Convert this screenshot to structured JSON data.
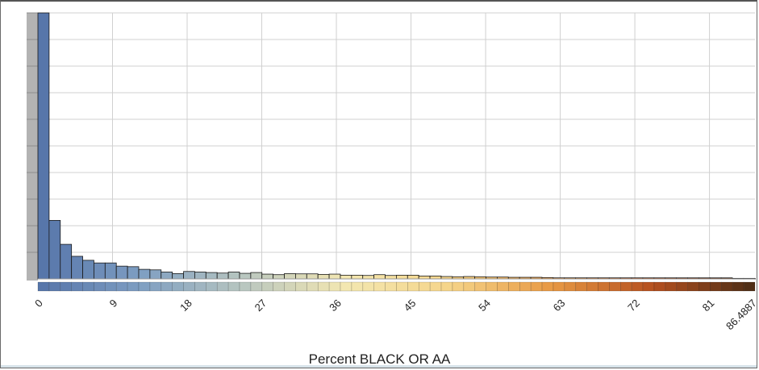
{
  "chart_data": {
    "type": "bar",
    "xlabel": "Percent BLACK OR AA",
    "x_ticks": [
      "0",
      "9",
      "18",
      "27",
      "36",
      "45",
      "54",
      "63",
      "72",
      "81",
      "86.4887"
    ],
    "xlim": [
      0,
      86.4887
    ],
    "ylim": [
      0,
      100
    ],
    "grid": true,
    "bin_width": 1.3511,
    "values": [
      100,
      22,
      13,
      8.5,
      7,
      6,
      6,
      4.8,
      4.6,
      3.6,
      3.4,
      2.6,
      2,
      2.8,
      2.6,
      2.4,
      2.2,
      2.6,
      2.1,
      2.4,
      1.8,
      1.6,
      2,
      1.9,
      1.9,
      1.7,
      1.8,
      1.4,
      1.4,
      1.3,
      1.6,
      1.3,
      1.4,
      1.4,
      1.1,
      1.1,
      0.9,
      0.8,
      0.9,
      0.8,
      0.7,
      0.7,
      0.6,
      0.6,
      0.6,
      0.5,
      0.4,
      0.4,
      0.4,
      0.4,
      0.4,
      0.4,
      0.4,
      0.4,
      0.4,
      0.4,
      0.4,
      0.4,
      0.4,
      0.4,
      0.4,
      0.4,
      0.2,
      0.2,
      0.2
    ],
    "colors": {
      "ramp": [
        "#5574a9",
        "#7e9ec2",
        "#b8c6c0",
        "#f3e7b1",
        "#f5d58a",
        "#e89a45",
        "#b5501f",
        "#4a2c15"
      ],
      "bar_outline": "#1a1a1a",
      "grid": "#d0d0d0",
      "axis_gutter": "#b3b3b3"
    }
  }
}
